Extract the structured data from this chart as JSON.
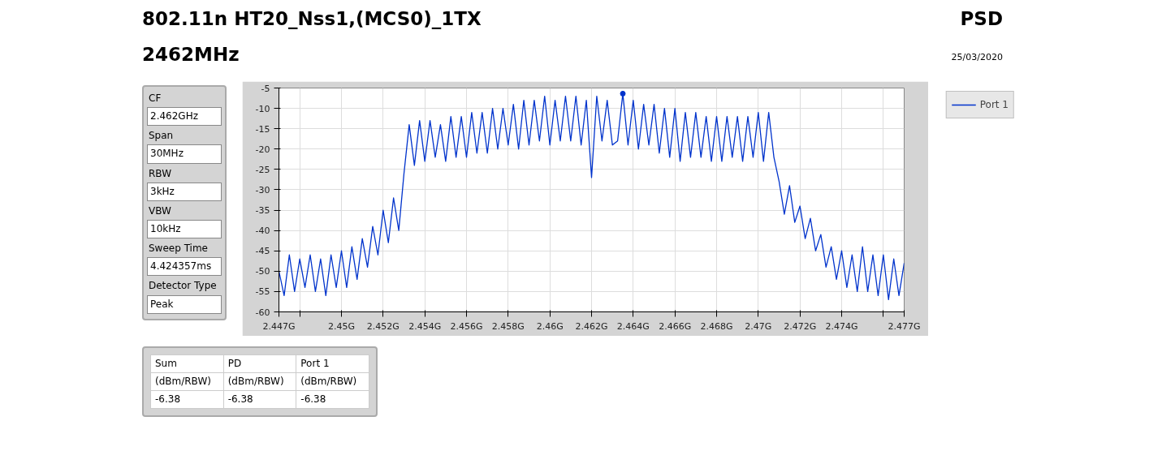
{
  "chart_data": {
    "type": "line",
    "title": "802.11n HT20_Nss1,(MCS0)_1TX",
    "subtitle": "2462MHz",
    "x": [
      2.447,
      2.44725,
      2.4475,
      2.44775,
      2.448,
      2.44825,
      2.4485,
      2.44875,
      2.449,
      2.44925,
      2.4495,
      2.44975,
      2.45,
      2.45025,
      2.4505,
      2.45075,
      2.451,
      2.45125,
      2.4515,
      2.45175,
      2.452,
      2.45225,
      2.4525,
      2.45275,
      2.453,
      2.45325,
      2.4535,
      2.45375,
      2.454,
      2.45425,
      2.4545,
      2.45475,
      2.455,
      2.45525,
      2.4555,
      2.45575,
      2.456,
      2.45625,
      2.4565,
      2.45675,
      2.457,
      2.45725,
      2.4575,
      2.45775,
      2.458,
      2.45825,
      2.4585,
      2.45875,
      2.459,
      2.45925,
      2.4595,
      2.45975,
      2.46,
      2.46025,
      2.4605,
      2.46075,
      2.461,
      2.46125,
      2.4615,
      2.46175,
      2.462,
      2.46225,
      2.4625,
      2.46275,
      2.463,
      2.46325,
      2.4635,
      2.46375,
      2.464,
      2.46425,
      2.4645,
      2.46475,
      2.465,
      2.46525,
      2.4655,
      2.46575,
      2.466,
      2.46625,
      2.4665,
      2.46675,
      2.467,
      2.46725,
      2.4675,
      2.46775,
      2.468,
      2.46825,
      2.4685,
      2.46875,
      2.469,
      2.46925,
      2.4695,
      2.46975,
      2.47,
      2.47025,
      2.4705,
      2.47075,
      2.471,
      2.47125,
      2.4715,
      2.47175,
      2.472,
      2.47225,
      2.4725,
      2.47275,
      2.473,
      2.47325,
      2.4735,
      2.47375,
      2.474,
      2.47425,
      2.4745,
      2.47475,
      2.475,
      2.47525,
      2.4755,
      2.47575,
      2.476,
      2.47625,
      2.4765,
      2.47675,
      2.477
    ],
    "series": [
      {
        "name": "Port 1",
        "color": "#0033cc",
        "values": [
          -50,
          -56,
          -46,
          -55,
          -47,
          -54,
          -46,
          -55,
          -47,
          -56,
          -46,
          -54,
          -45,
          -54,
          -44,
          -52,
          -42,
          -49,
          -39,
          -46,
          -35,
          -43,
          -32,
          -40,
          -26,
          -14,
          -24,
          -13,
          -23,
          -13,
          -22,
          -14,
          -23,
          -12,
          -22,
          -12,
          -22,
          -11,
          -21,
          -11,
          -21,
          -10,
          -20,
          -10,
          -19,
          -9,
          -20,
          -8,
          -19,
          -8,
          -18,
          -7,
          -19,
          -8,
          -18,
          -7,
          -18,
          -7,
          -19,
          -8,
          -27,
          -7,
          -18,
          -8,
          -19,
          -18,
          -6.38,
          -19,
          -8,
          -20,
          -9,
          -19,
          -9,
          -21,
          -10,
          -22,
          -10,
          -23,
          -11,
          -22,
          -11,
          -22,
          -12,
          -23,
          -12,
          -23,
          -12,
          -22,
          -12,
          -23,
          -12,
          -22,
          -11,
          -23,
          -11,
          -22,
          -28,
          -36,
          -29,
          -38,
          -34,
          -42,
          -37,
          -45,
          -41,
          -49,
          -44,
          -52,
          -45,
          -54,
          -46,
          -55,
          -44,
          -55,
          -46,
          -56,
          -46,
          -57,
          -47,
          -56,
          -48
        ]
      },
      {
        "type": "scatter",
        "marker": "circle",
        "color": "#0033cc",
        "x": [
          2.4635
        ],
        "values": [
          -6.38
        ]
      }
    ],
    "xlim": [
      2.447,
      2.477
    ],
    "xticks": [
      {
        "value": 2.447,
        "label": "2.447G"
      },
      {
        "value": 2.448,
        "label": null
      },
      {
        "value": 2.45,
        "label": "2.45G"
      },
      {
        "value": 2.452,
        "label": "2.452G"
      },
      {
        "value": 2.454,
        "label": "2.454G"
      },
      {
        "value": 2.456,
        "label": "2.456G"
      },
      {
        "value": 2.458,
        "label": "2.458G"
      },
      {
        "value": 2.46,
        "label": "2.46G"
      },
      {
        "value": 2.462,
        "label": "2.462G"
      },
      {
        "value": 2.464,
        "label": "2.464G"
      },
      {
        "value": 2.466,
        "label": "2.466G"
      },
      {
        "value": 2.468,
        "label": "2.468G"
      },
      {
        "value": 2.47,
        "label": "2.47G"
      },
      {
        "value": 2.472,
        "label": "2.472G"
      },
      {
        "value": 2.474,
        "label": "2.474G"
      },
      {
        "value": 2.476,
        "label": null
      },
      {
        "value": 2.477,
        "label": "2.477G"
      }
    ],
    "ylim": [
      -60,
      -5
    ],
    "yticks": [
      -60,
      -55,
      -50,
      -45,
      -40,
      -35,
      -30,
      -25,
      -20,
      -15,
      -10,
      -5
    ],
    "grid": true,
    "legend": "top right",
    "marker": "none",
    "line_style": "solid",
    "annotations": [
      "PSD",
      "25/03/2020",
      "CF",
      "2.462GHz",
      "Span",
      "30MHz",
      "RBW",
      "3kHz",
      "VBW",
      "10kHz",
      "Sweep Time",
      "4.424357ms",
      "Detector Type",
      "Peak",
      "Sum",
      "PD",
      "Port 1",
      "(dBm/RBW)",
      "(dBm/RBW)",
      "(dBm/RBW)",
      "-6.38",
      "-6.38",
      "-6.38"
    ]
  }
}
